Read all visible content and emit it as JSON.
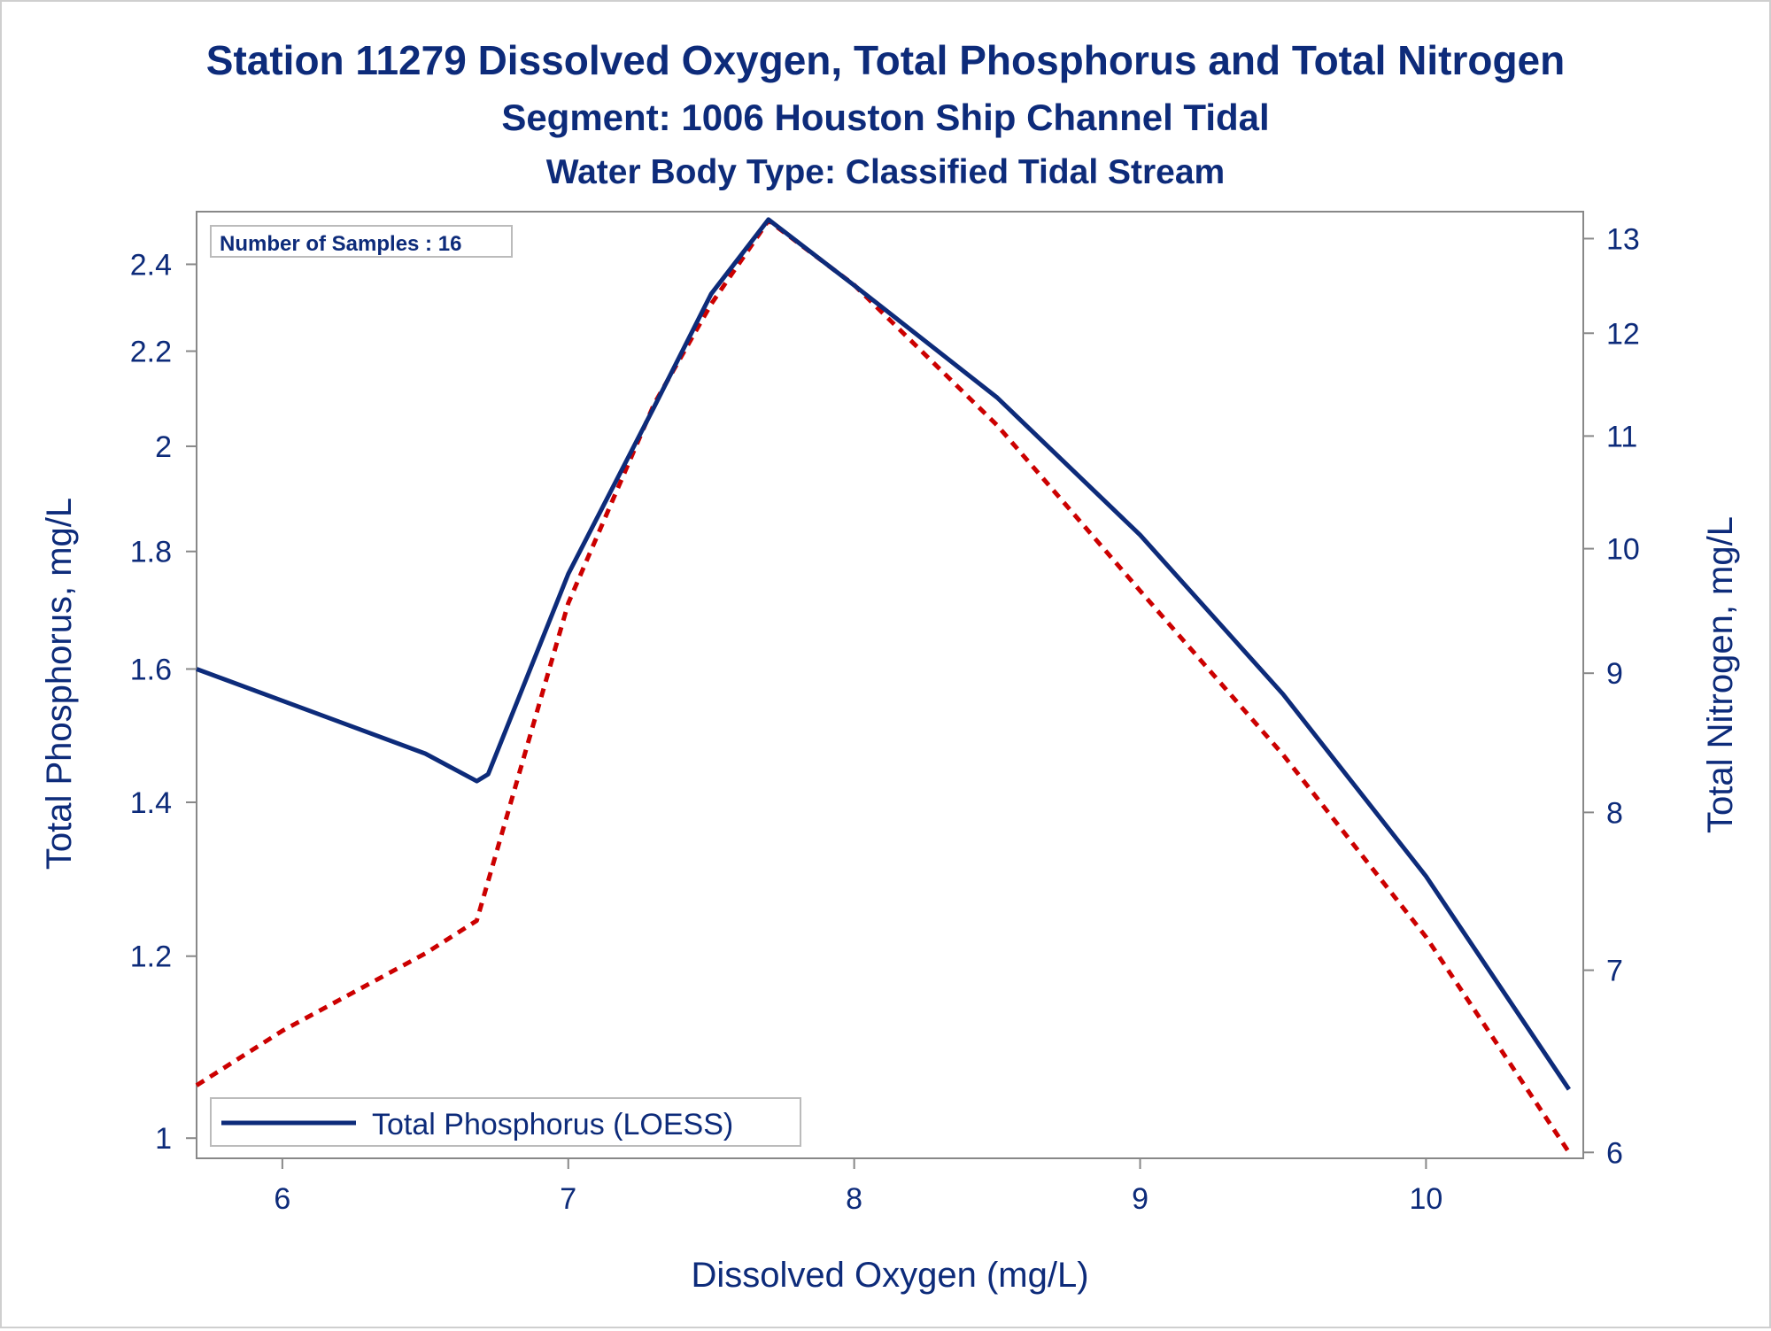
{
  "chart_data": {
    "type": "line",
    "title": "Station 11279  Dissolved Oxygen, Total Phosphorus and Total Nitrogen",
    "subtitle": "Segment: 1006  Houston Ship Channel Tidal",
    "subtitle2": "Water Body Type: Classified Tidal Stream",
    "annotation": "Number of Samples : 16",
    "xlabel": "Dissolved Oxygen (mg/L)",
    "ylabel": "Total Phosphorus, mg/L",
    "y2label": "Total Nitrogen, mg/L",
    "xlim": [
      5.7,
      10.55
    ],
    "ylim": [
      0.98,
      2.53
    ],
    "y2lim": [
      5.97,
      13.3
    ],
    "y_scale": "log",
    "y2_scale": "log",
    "x_ticks": [
      "6",
      "7",
      "8",
      "9",
      "10"
    ],
    "y_ticks": [
      "1",
      "1.2",
      "1.4",
      "1.6",
      "1.8",
      "2",
      "2.2",
      "2.4"
    ],
    "y2_ticks": [
      "6",
      "7",
      "8",
      "9",
      "10",
      "11",
      "12",
      "13"
    ],
    "legend_position": "bottom-left",
    "grid": false,
    "series": [
      {
        "name": "Total Phosphorus (LOESS)",
        "axis": "left",
        "color": "#0d2b7a",
        "style": "solid",
        "x": [
          5.7,
          6.0,
          6.5,
          6.68,
          6.72,
          7.0,
          7.3,
          7.5,
          7.7,
          8.0,
          8.5,
          9.0,
          9.5,
          10.0,
          10.5
        ],
        "y": [
          1.6,
          1.55,
          1.47,
          1.43,
          1.44,
          1.76,
          2.08,
          2.33,
          2.51,
          2.35,
          2.1,
          1.83,
          1.56,
          1.3,
          1.05
        ]
      },
      {
        "name": "",
        "axis": "right",
        "color": "#cc0000",
        "style": "dashed",
        "x": [
          5.7,
          6.0,
          6.5,
          6.68,
          7.0,
          7.3,
          7.5,
          7.7,
          8.0,
          8.5,
          9.0,
          9.5,
          10.0,
          10.5
        ],
        "y": [
          6.35,
          6.65,
          7.1,
          7.3,
          9.55,
          11.3,
          12.3,
          13.2,
          12.5,
          11.1,
          9.65,
          8.4,
          7.2,
          6.0
        ]
      }
    ]
  }
}
